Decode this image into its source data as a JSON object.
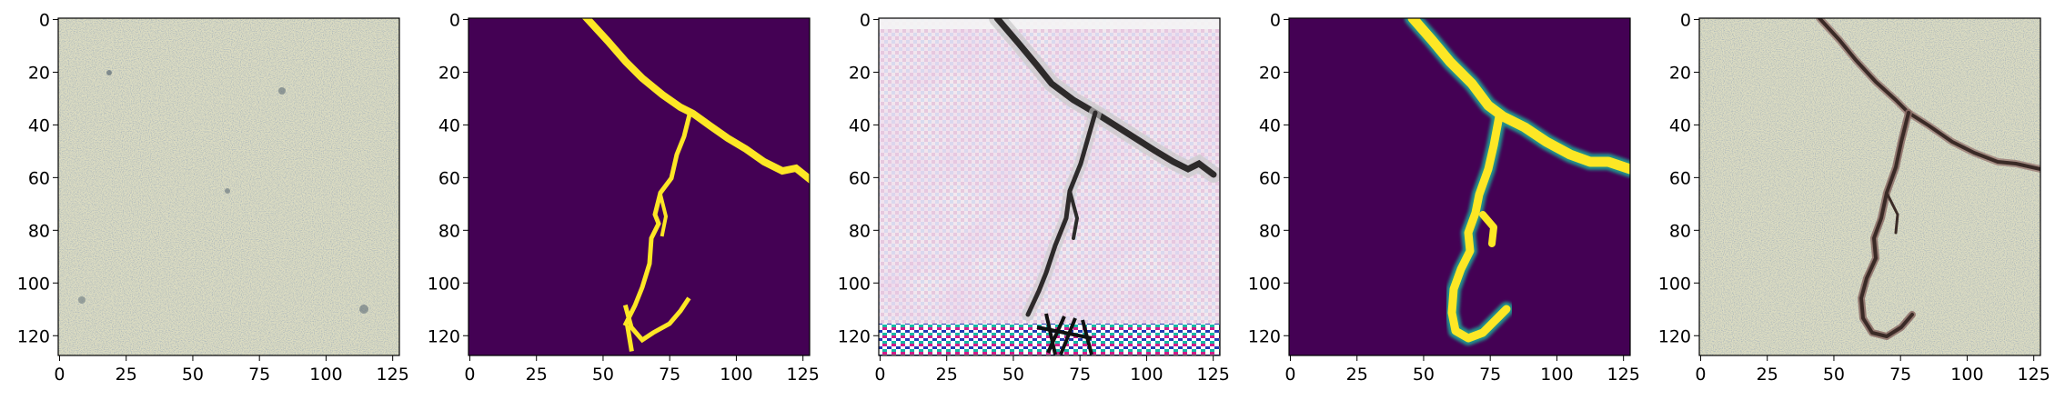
{
  "figure": {
    "panels": [
      {
        "id": "panel-1",
        "content": "concrete-texture"
      },
      {
        "id": "panel-2",
        "content": "crack-mask-binary"
      },
      {
        "id": "panel-3",
        "content": "generated-crack-artifacted"
      },
      {
        "id": "panel-4",
        "content": "crack-mask-smooth"
      },
      {
        "id": "panel-5",
        "content": "concrete-with-crack"
      }
    ],
    "xticks": [
      "0",
      "25",
      "50",
      "75",
      "100",
      "125"
    ],
    "yticks": [
      "0",
      "20",
      "40",
      "60",
      "80",
      "100",
      "120"
    ]
  },
  "colors": {
    "mask_background": "#440154",
    "mask_crack": "#fde725",
    "mask_edge": "#21918c",
    "concrete_base": "#dcdcc0",
    "crack_dark": "#3a2a26"
  }
}
